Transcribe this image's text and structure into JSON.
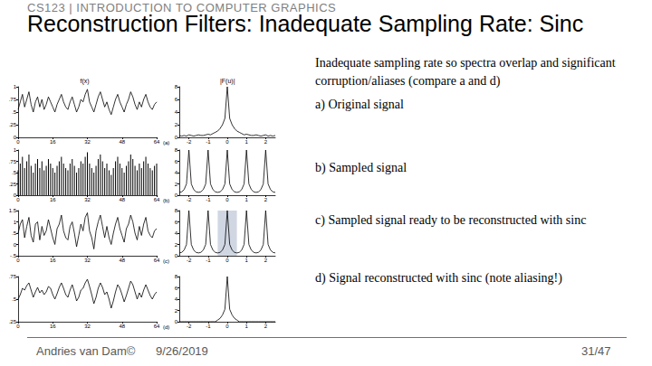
{
  "slide": {
    "header": "CS123 | INTRODUCTION TO COMPUTER GRAPHICS",
    "title": "Reconstruction Filters: Inadequate Sampling Rate: Sinc",
    "description": "Inadequate sampling rate so spectra overlap and significant corruption/aliases (compare a and d)",
    "captions": [
      "a) Original signal",
      "b) Sampled signal",
      "c) Sampled signal ready to be reconstructed with sinc",
      "d) Signal reconstructed with sinc (note aliasing!)"
    ],
    "footer": {
      "author": "Andries van Dam©",
      "date": "9/26/2019",
      "page": "31/47"
    }
  },
  "chart_data": [
    {
      "type": "line",
      "title": "f(x)",
      "color": "#000000",
      "grid": false,
      "x": [
        0,
        1,
        2,
        3,
        4,
        5,
        6,
        7,
        8,
        9,
        10,
        11,
        12,
        13,
        14,
        15,
        16,
        17,
        18,
        19,
        20,
        21,
        22,
        23,
        24,
        25,
        26,
        27,
        28,
        29,
        30,
        31,
        32,
        33,
        34,
        35,
        36,
        37,
        38,
        39,
        40,
        41,
        42,
        43,
        44,
        45,
        46,
        47,
        48,
        49,
        50,
        51,
        52,
        53,
        54,
        55,
        56,
        57,
        58,
        59,
        60,
        61,
        62,
        63,
        64
      ],
      "values": [
        0.55,
        0.7,
        0.85,
        0.6,
        0.75,
        0.9,
        0.65,
        0.5,
        0.7,
        0.8,
        0.6,
        0.75,
        0.55,
        0.65,
        0.8,
        0.7,
        0.6,
        0.5,
        0.65,
        0.75,
        0.85,
        0.7,
        0.6,
        0.55,
        0.7,
        0.8,
        0.65,
        0.5,
        0.6,
        0.75,
        0.7,
        0.85,
        0.95,
        0.7,
        0.6,
        0.5,
        0.65,
        0.8,
        0.9,
        0.75,
        0.6,
        0.7,
        0.55,
        0.45,
        0.6,
        0.75,
        0.85,
        0.7,
        0.6,
        0.5,
        0.65,
        0.75,
        0.9,
        0.8,
        0.65,
        0.55,
        0.7,
        0.6,
        0.75,
        0.85,
        0.7,
        0.6,
        0.55,
        0.65,
        0.7
      ],
      "xlim": [
        0,
        64
      ],
      "xticks": [
        0,
        16,
        32,
        48,
        64
      ],
      "ylim": [
        0,
        1
      ],
      "yticks": [
        0,
        {
          "value": 0.25,
          "label": ".25"
        },
        {
          "value": 0.5,
          "label": ".5"
        },
        {
          "value": 0.75,
          "label": ".75"
        },
        1
      ]
    },
    {
      "type": "line",
      "title": "|F(u)|",
      "annotation": "(a)",
      "color": "#000000",
      "grid": false,
      "x": [
        -2.5,
        -2.375,
        -2.25,
        -2.125,
        -2,
        -1.875,
        -1.75,
        -1.625,
        -1.5,
        -1.375,
        -1.25,
        -1.125,
        -1,
        -0.875,
        -0.75,
        -0.625,
        -0.5,
        -0.375,
        -0.25,
        -0.125,
        0,
        0.125,
        0.25,
        0.375,
        0.5,
        0.625,
        0.75,
        0.875,
        1,
        1.125,
        1.25,
        1.375,
        1.5,
        1.625,
        1.75,
        1.875,
        2,
        2.125,
        2.25,
        2.375,
        2.5
      ],
      "values": [
        0.3,
        0.2,
        0.3,
        0.2,
        0.4,
        0.3,
        0.2,
        0.3,
        0.4,
        0.3,
        0.3,
        0.4,
        0.5,
        0.4,
        0.6,
        0.8,
        1,
        1.4,
        2,
        3,
        8,
        3,
        2,
        1.4,
        1,
        0.8,
        0.6,
        0.4,
        0.5,
        0.4,
        0.3,
        0.3,
        0.4,
        0.3,
        0.2,
        0.3,
        0.4,
        0.2,
        0.3,
        0.2,
        0.3
      ],
      "xlim": [
        -2.5,
        2.5
      ],
      "xticks": [
        -2,
        -1,
        0,
        1,
        2
      ],
      "ylim": [
        0,
        8
      ],
      "yticks": [
        0,
        2,
        4,
        6,
        8
      ]
    },
    {
      "type": "bar",
      "color": "#000000",
      "grid": false,
      "x": [
        0,
        1,
        2,
        3,
        4,
        5,
        6,
        7,
        8,
        9,
        10,
        11,
        12,
        13,
        14,
        15,
        16,
        17,
        18,
        19,
        20,
        21,
        22,
        23,
        24,
        25,
        26,
        27,
        28,
        29,
        30,
        31,
        32,
        33,
        34,
        35,
        36,
        37,
        38,
        39,
        40,
        41,
        42,
        43,
        44,
        45,
        46,
        47,
        48,
        49,
        50,
        51,
        52,
        53,
        54,
        55,
        56,
        57,
        58,
        59,
        60,
        61,
        62,
        63,
        64
      ],
      "values": [
        0.55,
        0.7,
        0.85,
        0.6,
        0.75,
        0.9,
        0.65,
        0.5,
        0.7,
        0.8,
        0.6,
        0.75,
        0.55,
        0.65,
        0.8,
        0.7,
        0.6,
        0.5,
        0.65,
        0.75,
        0.85,
        0.7,
        0.6,
        0.55,
        0.7,
        0.8,
        0.65,
        0.5,
        0.6,
        0.75,
        0.7,
        0.85,
        0.95,
        0.7,
        0.6,
        0.5,
        0.65,
        0.8,
        0.9,
        0.75,
        0.6,
        0.7,
        0.55,
        0.45,
        0.6,
        0.75,
        0.85,
        0.7,
        0.6,
        0.5,
        0.65,
        0.75,
        0.9,
        0.8,
        0.65,
        0.55,
        0.7,
        0.6,
        0.75,
        0.85,
        0.7,
        0.6,
        0.55,
        0.65,
        0.7
      ],
      "xlim": [
        0,
        64
      ],
      "xticks": [
        0,
        16,
        32,
        48,
        64
      ],
      "ylim": [
        0,
        1
      ],
      "yticks": [
        0,
        {
          "value": 0.25,
          "label": ".25"
        },
        {
          "value": 0.5,
          "label": ".5"
        },
        {
          "value": 0.75,
          "label": ".75"
        },
        1
      ]
    },
    {
      "type": "line",
      "annotation": "(b)",
      "color": "#000000",
      "grid": false,
      "x": [
        -2.5,
        -2.375,
        -2.25,
        -2.125,
        -2,
        -1.875,
        -1.75,
        -1.625,
        -1.5,
        -1.375,
        -1.25,
        -1.125,
        -1,
        -0.875,
        -0.75,
        -0.625,
        -0.5,
        -0.375,
        -0.25,
        -0.125,
        0,
        0.125,
        0.25,
        0.375,
        0.5,
        0.625,
        0.75,
        0.875,
        1,
        1.125,
        1.25,
        1.375,
        1.5,
        1.625,
        1.75,
        1.875,
        2,
        2.125,
        2.25,
        2.375,
        2.5
      ],
      "values": [
        0.5,
        0.6,
        1,
        2,
        8,
        2,
        1,
        0.6,
        0.5,
        0.6,
        1,
        2,
        8,
        2,
        1,
        0.6,
        0.5,
        0.6,
        1,
        2,
        8,
        2,
        1,
        0.6,
        0.5,
        0.6,
        1,
        2,
        8,
        2,
        1,
        0.6,
        0.5,
        0.6,
        1,
        2,
        8,
        2,
        1,
        0.6,
        0.5
      ],
      "xlim": [
        -2.5,
        2.5
      ],
      "xticks": [
        -2,
        -1,
        0,
        1,
        2
      ],
      "ylim": [
        0,
        8
      ],
      "yticks": [
        0,
        2,
        4,
        6,
        8
      ]
    },
    {
      "type": "line",
      "color": "#000000",
      "grid": false,
      "x": [
        0,
        1,
        2,
        3,
        4,
        5,
        6,
        7,
        8,
        9,
        10,
        11,
        12,
        13,
        14,
        15,
        16,
        17,
        18,
        19,
        20,
        21,
        22,
        23,
        24,
        25,
        26,
        27,
        28,
        29,
        30,
        31,
        32,
        33,
        34,
        35,
        36,
        37,
        38,
        39,
        40,
        41,
        42,
        43,
        44,
        45,
        46,
        47,
        48,
        49,
        50,
        51,
        52,
        53,
        54,
        55,
        56,
        57,
        58,
        59,
        60,
        61,
        62,
        63,
        64
      ],
      "values": [
        0.5,
        0.9,
        1.1,
        0.3,
        0.8,
        1.2,
        0.4,
        0.1,
        0.9,
        1.0,
        0.2,
        0.8,
        0.4,
        0.6,
        1.1,
        0.7,
        0.3,
        0.0,
        0.7,
        0.9,
        1.3,
        0.6,
        0.3,
        0.2,
        0.8,
        1.0,
        0.5,
        -0.1,
        0.4,
        0.9,
        0.6,
        1.2,
        1.4,
        0.6,
        0.3,
        -0.2,
        0.6,
        1.0,
        1.3,
        0.8,
        0.3,
        0.8,
        0.3,
        0.0,
        0.5,
        0.9,
        1.2,
        0.7,
        0.4,
        0.1,
        0.7,
        0.9,
        1.3,
        1.0,
        0.5,
        0.2,
        0.8,
        0.4,
        0.9,
        1.2,
        0.6,
        0.4,
        0.3,
        0.6,
        0.7
      ],
      "xlim": [
        0,
        64
      ],
      "xticks": [
        0,
        16,
        32,
        48,
        64
      ],
      "ylim": [
        -0.5,
        1.5
      ],
      "yticks": [
        {
          "value": -0.5,
          "label": "-.5"
        },
        0,
        {
          "value": 0.5,
          "label": ".5"
        },
        1,
        1.5
      ]
    },
    {
      "type": "line",
      "annotation": "(c)",
      "color": "#000000",
      "grid": false,
      "passband": [
        -0.5,
        0.5
      ],
      "x": [
        -2.5,
        -2.375,
        -2.25,
        -2.125,
        -2,
        -1.875,
        -1.75,
        -1.625,
        -1.5,
        -1.375,
        -1.25,
        -1.125,
        -1,
        -0.875,
        -0.75,
        -0.625,
        -0.5,
        -0.375,
        -0.25,
        -0.125,
        0,
        0.125,
        0.25,
        0.375,
        0.5,
        0.625,
        0.75,
        0.875,
        1,
        1.125,
        1.25,
        1.375,
        1.5,
        1.625,
        1.75,
        1.875,
        2,
        2.125,
        2.25,
        2.375,
        2.5
      ],
      "values": [
        0.5,
        0.6,
        1,
        2,
        8,
        2,
        1,
        0.6,
        0.5,
        0.6,
        1,
        2,
        8,
        2,
        1,
        0.6,
        0.5,
        0.6,
        1,
        2,
        8,
        2,
        1,
        0.6,
        0.5,
        0.6,
        1,
        2,
        8,
        2,
        1,
        0.6,
        0.5,
        0.6,
        1,
        2,
        8,
        2,
        1,
        0.6,
        0.5
      ],
      "xlim": [
        -2.5,
        2.5
      ],
      "xticks": [
        -2,
        -1,
        0,
        1,
        2
      ],
      "ylim": [
        0,
        8
      ],
      "yticks": [
        0,
        2,
        4,
        6,
        8
      ]
    },
    {
      "type": "line",
      "color": "#000000",
      "grid": false,
      "x": [
        0,
        1,
        2,
        3,
        4,
        5,
        6,
        7,
        8,
        9,
        10,
        11,
        12,
        13,
        14,
        15,
        16,
        17,
        18,
        19,
        20,
        21,
        22,
        23,
        24,
        25,
        26,
        27,
        28,
        29,
        30,
        31,
        32,
        33,
        34,
        35,
        36,
        37,
        38,
        39,
        40,
        41,
        42,
        43,
        44,
        45,
        46,
        47,
        48,
        49,
        50,
        51,
        52,
        53,
        54,
        55,
        56,
        57,
        58,
        59,
        60,
        61,
        62,
        63,
        64
      ],
      "values": [
        0.5,
        0.55,
        0.62,
        0.6,
        0.65,
        0.68,
        0.6,
        0.52,
        0.58,
        0.63,
        0.57,
        0.6,
        0.55,
        0.58,
        0.64,
        0.62,
        0.55,
        0.5,
        0.56,
        0.63,
        0.68,
        0.62,
        0.55,
        0.52,
        0.6,
        0.66,
        0.58,
        0.48,
        0.52,
        0.6,
        0.62,
        0.68,
        0.72,
        0.64,
        0.55,
        0.45,
        0.52,
        0.62,
        0.68,
        0.63,
        0.55,
        0.58,
        0.5,
        0.4,
        0.48,
        0.58,
        0.66,
        0.62,
        0.55,
        0.47,
        0.54,
        0.62,
        0.7,
        0.66,
        0.58,
        0.5,
        0.57,
        0.52,
        0.6,
        0.66,
        0.6,
        0.54,
        0.5,
        0.55,
        0.58
      ],
      "xlim": [
        0,
        64
      ],
      "xticks": [
        0,
        16,
        32,
        48,
        64
      ],
      "ylim": [
        0.25,
        0.75
      ],
      "yticks": [
        {
          "value": 0.25,
          "label": ".25"
        },
        {
          "value": 0.5,
          "label": ".5"
        },
        {
          "value": 0.75,
          "label": ".75"
        }
      ]
    },
    {
      "type": "line",
      "annotation": "(d)",
      "color": "#000000",
      "grid": false,
      "x": [
        -2.5,
        -2.375,
        -2.25,
        -2.125,
        -2,
        -1.875,
        -1.75,
        -1.625,
        -1.5,
        -1.375,
        -1.25,
        -1.125,
        -1,
        -0.875,
        -0.75,
        -0.625,
        -0.5,
        -0.375,
        -0.25,
        -0.125,
        0,
        0.125,
        0.25,
        0.375,
        0.5,
        0.625,
        0.75,
        0.875,
        1,
        1.125,
        1.25,
        1.375,
        1.5,
        1.625,
        1.75,
        1.875,
        2,
        2.125,
        2.25,
        2.375,
        2.5
      ],
      "values": [
        0,
        0,
        0,
        0,
        0,
        0,
        0,
        0,
        0,
        0,
        0,
        0,
        0,
        0,
        0,
        0,
        0.3,
        0.6,
        1.2,
        2.2,
        8,
        2.2,
        1.2,
        0.6,
        0.3,
        0,
        0,
        0,
        0,
        0,
        0,
        0,
        0,
        0,
        0,
        0,
        0,
        0,
        0,
        0,
        0
      ],
      "xlim": [
        -2.5,
        2.5
      ],
      "xticks": [
        -2,
        -1,
        0,
        1,
        2
      ],
      "ylim": [
        0,
        8
      ],
      "yticks": [
        0,
        2,
        4,
        6,
        8
      ]
    }
  ]
}
